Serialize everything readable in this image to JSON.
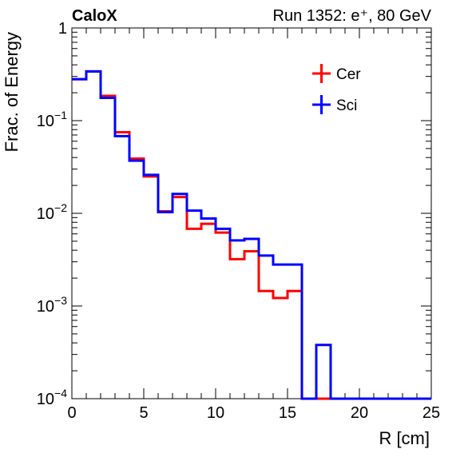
{
  "chart_data": {
    "type": "line",
    "style": "step-histogram",
    "label_left": "CaloX",
    "label_right": "Run 1352: e⁺, 80 GeV",
    "xlabel": "R [cm]",
    "ylabel": "Frac. of Energy",
    "xlim": [
      0,
      25
    ],
    "ylim": [
      0.0001,
      1
    ],
    "yscale": "log",
    "grid": false,
    "legend_position": "top-right",
    "x_ticks": [
      {
        "value": 0,
        "label": "0"
      },
      {
        "value": 5,
        "label": "5"
      },
      {
        "value": 10,
        "label": "10"
      },
      {
        "value": 15,
        "label": "15"
      },
      {
        "value": 20,
        "label": "20"
      },
      {
        "value": 25,
        "label": "25"
      }
    ],
    "y_ticks": [
      {
        "value": 1,
        "base": "1",
        "exp": ""
      },
      {
        "value": 0.1,
        "base": "10",
        "exp": "−1"
      },
      {
        "value": 0.01,
        "base": "10",
        "exp": "−2"
      },
      {
        "value": 0.001,
        "base": "10",
        "exp": "−3"
      },
      {
        "value": 0.0001,
        "base": "10",
        "exp": "−4"
      }
    ],
    "bin_edges": [
      0,
      1,
      2,
      3,
      4,
      5,
      6,
      7,
      8,
      9,
      10,
      11,
      12,
      13,
      14,
      15,
      16,
      17,
      18,
      19,
      20,
      21,
      22,
      23,
      24,
      25
    ],
    "series": [
      {
        "name": "Cer",
        "color": "#ff0000",
        "values": [
          0.28,
          0.34,
          0.185,
          0.075,
          0.039,
          0.025,
          0.0105,
          0.015,
          0.0068,
          0.0077,
          0.0062,
          0.0032,
          0.0039,
          0.00145,
          0.00122,
          0.00145,
          0,
          0,
          0,
          0,
          0,
          0,
          0,
          0,
          0
        ]
      },
      {
        "name": "Sci",
        "color": "#0000ff",
        "values": [
          0.28,
          0.34,
          0.176,
          0.068,
          0.037,
          0.026,
          0.0103,
          0.0162,
          0.0107,
          0.0088,
          0.0068,
          0.0051,
          0.0053,
          0.0035,
          0.0028,
          0.0028,
          0,
          0.00038,
          0,
          0,
          0,
          0,
          0,
          0,
          0
        ]
      }
    ]
  }
}
